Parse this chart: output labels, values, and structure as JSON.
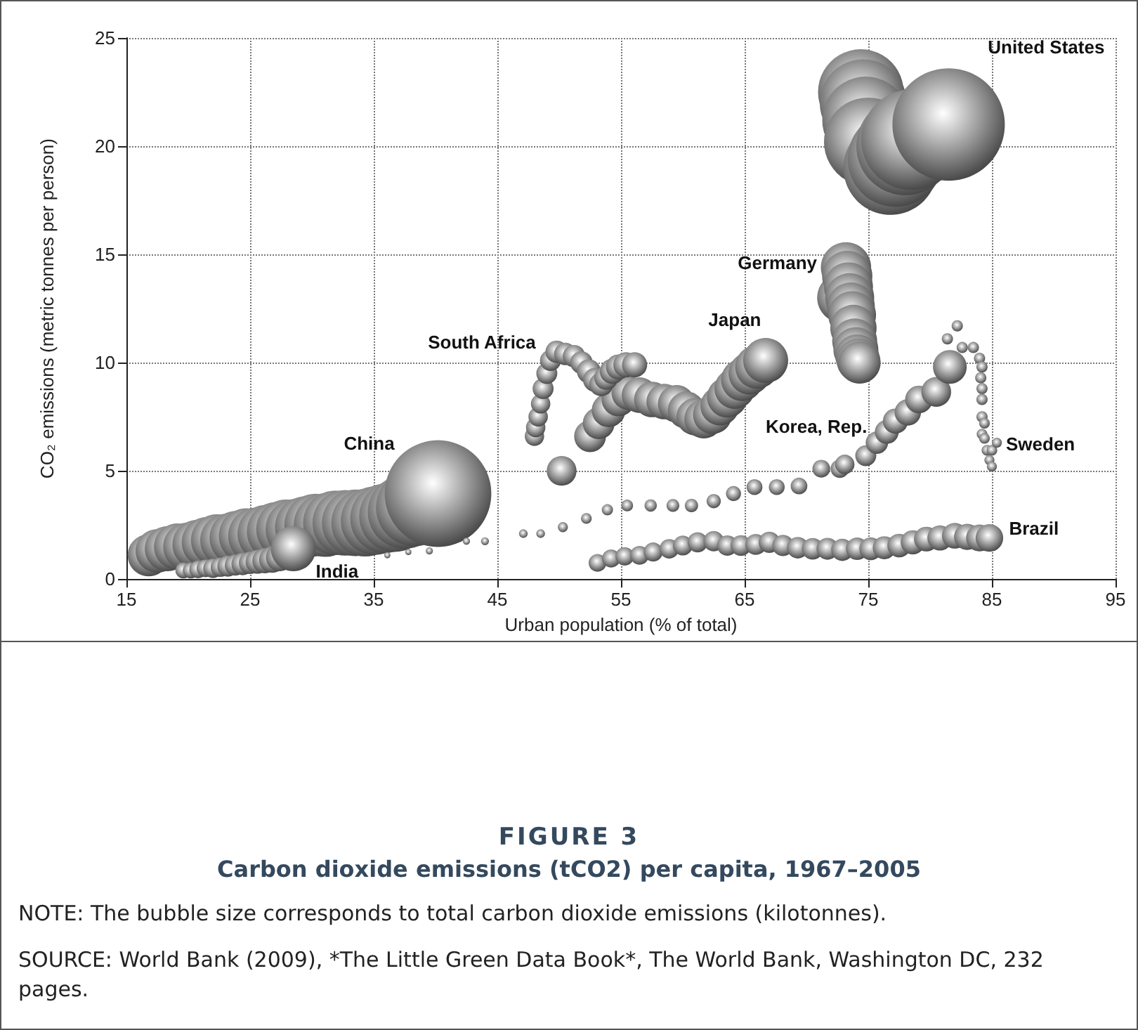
{
  "chart_data": {
    "type": "bubble",
    "title": "FIGURE 3",
    "subtitle": "Carbon dioxide emissions (tCO2) per capita, 1967–2005",
    "xlabel": "Urban population (% of total)",
    "ylabel": "CO₂ emissions (metric tonnes per person)",
    "annotations": [
      "NOTE: The bubble size corresponds to total carbon dioxide emissions (kilotonnes).",
      "SOURCE: World Bank (2009), *The Little Green Data Book*, The World Bank, Washington DC, 232 pages."
    ],
    "xlim": [
      15,
      95
    ],
    "xticks": [
      15,
      25,
      35,
      45,
      55,
      65,
      75,
      85,
      95
    ],
    "ylim": [
      0,
      25
    ],
    "yticks": [
      0,
      5,
      10,
      15,
      20,
      25
    ],
    "grid": true,
    "series": [
      {
        "name": "United States",
        "color": "#4a4a4a",
        "x": [
          74.4,
          74.6,
          74.8,
          75.0,
          76.8,
          77.2,
          78.0,
          78.5,
          81.5
        ],
        "values": [
          22.5,
          22.0,
          21.2,
          20.2,
          19.0,
          19.4,
          20.0,
          20.3,
          21.0
        ],
        "sizes": [
          0.58,
          0.6,
          0.6,
          0.62,
          0.7,
          0.72,
          0.76,
          0.8,
          1
        ]
      },
      {
        "name": "Germany",
        "color": "#4a4a4a",
        "x": [
          72.9,
          73.2,
          73.3,
          73.4,
          73.5,
          73.6,
          73.7,
          73.8,
          73.9,
          74.0,
          74.1,
          74.2,
          74.3
        ],
        "values": [
          13.0,
          14.4,
          14.0,
          13.5,
          13.0,
          12.6,
          12.2,
          11.6,
          11.0,
          10.6,
          10.3,
          10.1,
          10.0
        ],
        "sizes": [
          0.2,
          0.2,
          0.2,
          0.19,
          0.19,
          0.18,
          0.18,
          0.17,
          0.16,
          0.16,
          0.15,
          0.15,
          0.14
        ]
      },
      {
        "name": "Japan",
        "color": "#4a4a4a",
        "x": [
          52.5,
          53.2,
          54.0,
          54.8,
          55.6,
          56.5,
          57.5,
          58.5,
          59.5,
          60.3,
          61.0,
          61.7,
          62.4,
          63.0,
          63.6,
          64.2,
          64.8,
          65.4,
          66.0,
          66.7
        ],
        "values": [
          6.6,
          7.2,
          7.8,
          8.3,
          8.6,
          8.5,
          8.3,
          8.2,
          8.1,
          7.8,
          7.5,
          7.4,
          7.6,
          8.0,
          8.4,
          8.8,
          9.2,
          9.5,
          9.8,
          10.1
        ],
        "sizes": [
          0.08,
          0.08,
          0.09,
          0.09,
          0.09,
          0.1,
          0.1,
          0.1,
          0.11,
          0.11,
          0.11,
          0.12,
          0.12,
          0.12,
          0.13,
          0.13,
          0.14,
          0.14,
          0.15,
          0.16
        ]
      },
      {
        "name": "South Africa",
        "color": "#4a4a4a",
        "x": [
          48.0,
          48.1,
          48.3,
          48.5,
          48.7,
          49.0,
          49.3,
          49.8,
          50.5,
          51.2,
          51.8,
          52.4,
          52.9,
          53.4,
          53.8,
          54.3,
          54.8,
          55.4,
          56.1,
          50.2
        ],
        "values": [
          6.6,
          7.0,
          7.5,
          8.1,
          8.8,
          9.5,
          10.1,
          10.5,
          10.4,
          10.3,
          10.0,
          9.6,
          9.2,
          9.0,
          9.3,
          9.6,
          9.8,
          9.9,
          9.9,
          5.0
        ],
        "sizes": [
          0.03,
          0.03,
          0.03,
          0.03,
          0.035,
          0.035,
          0.035,
          0.04,
          0.04,
          0.04,
          0.04,
          0.045,
          0.045,
          0.045,
          0.045,
          0.05,
          0.05,
          0.05,
          0.05,
          0.07
        ]
      },
      {
        "name": "China",
        "color": "#4a4a4a",
        "x": [
          16.8,
          17.5,
          18.3,
          19.1,
          19.9,
          20.7,
          21.5,
          22.3,
          23.1,
          23.9,
          24.7,
          25.5,
          26.3,
          27.1,
          27.9,
          28.7,
          29.5,
          30.3,
          31.1,
          31.9,
          32.7,
          33.5,
          34.3,
          35.1,
          35.9,
          36.7,
          37.5,
          38.3,
          40.2
        ],
        "values": [
          1.1,
          1.3,
          1.4,
          1.5,
          1.5,
          1.6,
          1.7,
          1.8,
          1.8,
          1.9,
          2.0,
          2.0,
          2.1,
          2.2,
          2.3,
          2.3,
          2.4,
          2.5,
          2.5,
          2.6,
          2.6,
          2.6,
          2.6,
          2.7,
          2.8,
          2.9,
          3.1,
          3.3,
          3.95
        ],
        "sizes": [
          0.14,
          0.15,
          0.16,
          0.17,
          0.18,
          0.19,
          0.2,
          0.21,
          0.22,
          0.23,
          0.24,
          0.25,
          0.26,
          0.27,
          0.28,
          0.29,
          0.3,
          0.31,
          0.32,
          0.33,
          0.34,
          0.35,
          0.36,
          0.37,
          0.38,
          0.4,
          0.43,
          0.47,
          0.9
        ]
      },
      {
        "name": "India",
        "color": "#4a4a4a",
        "x": [
          19.6,
          20.2,
          20.8,
          21.4,
          22.0,
          22.6,
          23.2,
          23.8,
          24.4,
          25.0,
          25.6,
          26.2,
          26.8,
          27.4,
          28.5
        ],
        "values": [
          0.4,
          0.4,
          0.45,
          0.5,
          0.5,
          0.55,
          0.6,
          0.65,
          0.7,
          0.75,
          0.8,
          0.85,
          0.9,
          1.0,
          1.4
        ],
        "sizes": [
          0.02,
          0.02,
          0.025,
          0.025,
          0.03,
          0.03,
          0.035,
          0.035,
          0.04,
          0.04,
          0.045,
          0.05,
          0.055,
          0.06,
          0.16
        ]
      },
      {
        "name": "Korea, Rep.",
        "color": "#4a4a4a",
        "x": [
          36.1,
          37.8,
          39.5,
          42.5,
          44.0,
          47.1,
          48.5,
          50.3,
          52.2,
          53.9,
          55.5,
          57.4,
          59.2,
          60.7,
          62.5,
          64.1,
          65.8,
          67.6,
          69.4,
          71.2,
          72.7,
          73.1,
          74.8,
          75.7,
          76.5,
          77.2,
          78.2,
          79.1,
          80.5,
          81.6
        ],
        "values": [
          1.1,
          1.25,
          1.3,
          1.75,
          1.75,
          2.1,
          2.1,
          2.4,
          2.8,
          3.2,
          3.4,
          3.4,
          3.4,
          3.4,
          3.6,
          3.95,
          4.25,
          4.25,
          4.3,
          5.1,
          5.1,
          5.3,
          5.7,
          6.3,
          6.8,
          7.3,
          7.7,
          8.3,
          8.65,
          9.8
        ],
        "sizes": [
          0.003,
          0.003,
          0.004,
          0.004,
          0.005,
          0.006,
          0.006,
          0.008,
          0.009,
          0.01,
          0.011,
          0.012,
          0.013,
          0.014,
          0.016,
          0.018,
          0.02,
          0.02,
          0.022,
          0.025,
          0.027,
          0.03,
          0.035,
          0.04,
          0.045,
          0.05,
          0.055,
          0.06,
          0.07,
          0.09
        ]
      },
      {
        "name": "Sweden",
        "color": "#4a4a4a",
        "x": [
          82.2,
          81.4,
          82.6,
          83.5,
          84.0,
          84.2,
          84.1,
          84.2,
          84.2,
          84.2,
          84.4,
          84.2,
          84.4,
          84.6,
          85.0,
          85.4,
          84.8,
          85.0
        ],
        "values": [
          11.7,
          11.1,
          10.7,
          10.7,
          10.2,
          9.8,
          9.3,
          8.8,
          8.3,
          7.5,
          7.2,
          6.7,
          6.5,
          5.95,
          5.95,
          6.3,
          5.5,
          5.2
        ],
        "sizes": [
          0.01,
          0.01,
          0.01,
          0.01,
          0.01,
          0.01,
          0.01,
          0.01,
          0.01,
          0.01,
          0.009,
          0.009,
          0.009,
          0.009,
          0.009,
          0.008,
          0.008,
          0.008
        ]
      },
      {
        "name": "Brazil",
        "color": "#4a4a4a",
        "x": [
          53.1,
          54.2,
          55.3,
          56.5,
          57.6,
          58.9,
          60.0,
          61.2,
          62.5,
          63.6,
          64.7,
          65.9,
          67.0,
          68.1,
          69.3,
          70.5,
          71.7,
          72.9,
          74.1,
          75.2,
          76.3,
          77.5,
          78.6,
          79.7,
          80.8,
          82.0,
          83.0,
          84.0,
          84.8
        ],
        "values": [
          0.75,
          0.95,
          1.05,
          1.1,
          1.25,
          1.4,
          1.55,
          1.7,
          1.75,
          1.55,
          1.55,
          1.6,
          1.7,
          1.55,
          1.45,
          1.4,
          1.4,
          1.35,
          1.4,
          1.4,
          1.45,
          1.55,
          1.7,
          1.85,
          1.9,
          2.0,
          1.95,
          1.9,
          1.9
        ],
        "sizes": [
          0.025,
          0.026,
          0.027,
          0.028,
          0.029,
          0.03,
          0.031,
          0.032,
          0.033,
          0.033,
          0.034,
          0.035,
          0.036,
          0.036,
          0.037,
          0.037,
          0.038,
          0.039,
          0.04,
          0.041,
          0.042,
          0.044,
          0.046,
          0.048,
          0.05,
          0.052,
          0.054,
          0.057,
          0.06
        ]
      }
    ]
  }
}
